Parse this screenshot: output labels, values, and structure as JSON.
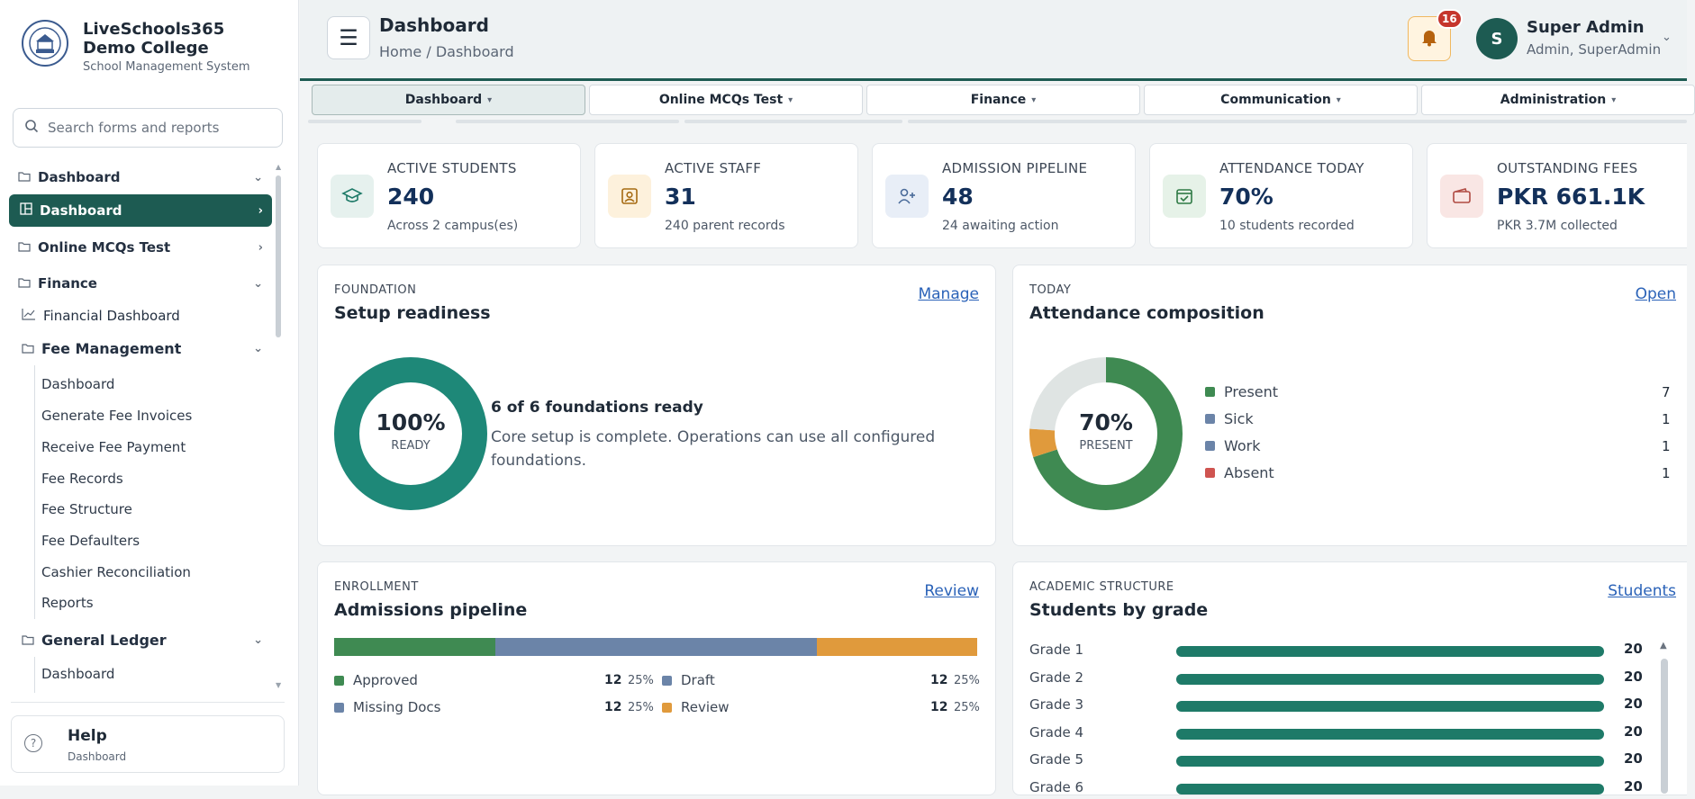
{
  "brand": {
    "name": "LiveSchools365 Demo College",
    "subtitle": "School Management System"
  },
  "search": {
    "placeholder": "Search forms and reports"
  },
  "sidebar": {
    "groups": [
      {
        "label": "Dashboard"
      },
      {
        "label": "Dashboard",
        "active": true
      },
      {
        "label": "Online MCQs Test"
      },
      {
        "label": "Finance"
      },
      {
        "label": "Financial Dashboard"
      },
      {
        "label": "Fee Management"
      }
    ],
    "fee_items": [
      "Dashboard",
      "Generate Fee Invoices",
      "Receive Fee Payment",
      "Fee Records",
      "Fee Structure",
      "Fee Defaulters",
      "Cashier Reconciliation",
      "Reports"
    ],
    "general_ledger": {
      "label": "General Ledger",
      "items": [
        "Dashboard"
      ]
    },
    "help": {
      "title": "Help",
      "subtitle": "Dashboard"
    }
  },
  "header": {
    "title": "Dashboard",
    "breadcrumb": "Home / Dashboard",
    "notifications": "16",
    "user": {
      "initial": "S",
      "name": "Super Admin",
      "role": "Admin, SuperAdmin"
    }
  },
  "tabs": [
    "Dashboard",
    "Online MCQs Test",
    "Finance",
    "Communication",
    "Administration"
  ],
  "stats": [
    {
      "label": "ACTIVE STUDENTS",
      "value": "240",
      "sub": "Across 2 campus(es)",
      "color": "#1e7a68",
      "bg": "#e6f1ee",
      "icon": "graduation-cap-icon"
    },
    {
      "label": "ACTIVE STAFF",
      "value": "31",
      "sub": "240 parent records",
      "color": "#a56a12",
      "bg": "#fdf1dc",
      "icon": "id-badge-icon"
    },
    {
      "label": "ADMISSION PIPELINE",
      "value": "48",
      "sub": "24 awaiting action",
      "color": "#4a6b9a",
      "bg": "#e8eef7",
      "icon": "user-plus-icon"
    },
    {
      "label": "ATTENDANCE TODAY",
      "value": "70%",
      "sub": "10 students recorded",
      "color": "#2f7a45",
      "bg": "#e6f2e8",
      "icon": "calendar-check-icon"
    },
    {
      "label": "OUTSTANDING FEES",
      "value": "PKR 661.1K",
      "sub": "PKR 3.7M collected",
      "color": "#b04a42",
      "bg": "#f9e6e4",
      "icon": "wallet-icon"
    }
  ],
  "setup": {
    "kicker": "FOUNDATION",
    "title": "Setup readiness",
    "link": "Manage",
    "percent": 100,
    "percent_label": "100%",
    "caption": "READY",
    "headline": "6 of 6 foundations ready",
    "description": "Core setup is complete. Operations can use all configured foundations."
  },
  "attendance": {
    "kicker": "TODAY",
    "title": "Attendance composition",
    "link": "Open",
    "percent_label": "70%",
    "caption": "PRESENT",
    "rest_color": "#dfe4e3",
    "segments": [
      {
        "name": "Present",
        "value": 7,
        "color": "#3f8a52"
      },
      {
        "name": "Sick",
        "value": 1,
        "color": "#6b84a8"
      },
      {
        "name": "Work",
        "value": 1,
        "color": "#6b84a8"
      },
      {
        "name": "Absent",
        "value": 1,
        "color": "#cf5450"
      }
    ],
    "ring": [
      {
        "value": 7,
        "color": "#3f8a52"
      },
      {
        "value": 0.6,
        "color": "#e09a3c"
      },
      {
        "value": 2.4,
        "color": "#dfe4e3"
      }
    ]
  },
  "enrollment": {
    "kicker": "ENROLLMENT",
    "title": "Admissions pipeline",
    "link": "Review",
    "items": [
      {
        "name": "Approved",
        "count": "12",
        "pct": "25%",
        "color": "#3f8a52",
        "share": 0.25
      },
      {
        "name": "Draft",
        "count": "12",
        "pct": "25%",
        "color": "#6b84a8",
        "share": 0.25
      },
      {
        "name": "Missing Docs",
        "count": "12",
        "pct": "25%",
        "color": "#6b84a8",
        "share": 0.25
      },
      {
        "name": "Review",
        "count": "12",
        "pct": "25%",
        "color": "#e09a3c",
        "share": 0.25
      }
    ]
  },
  "grades": {
    "kicker": "ACADEMIC STRUCTURE",
    "title": "Students by grade",
    "link": "Students",
    "max": 20,
    "rows": [
      {
        "name": "Grade 1",
        "value": 20
      },
      {
        "name": "Grade 2",
        "value": 20
      },
      {
        "name": "Grade 3",
        "value": 20
      },
      {
        "name": "Grade 4",
        "value": 20
      },
      {
        "name": "Grade 5",
        "value": 20
      },
      {
        "name": "Grade 6",
        "value": 20
      }
    ]
  }
}
